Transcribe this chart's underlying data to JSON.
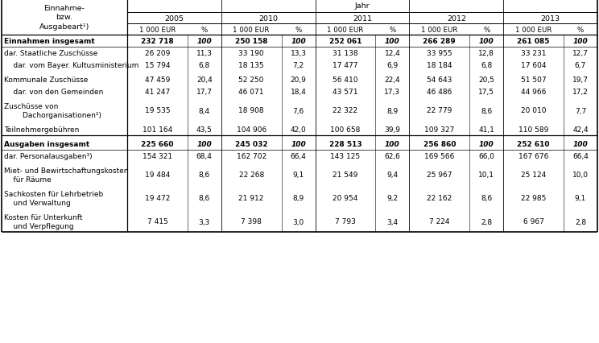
{
  "title": "Jahr",
  "years": [
    "2005",
    "2010",
    "2011",
    "2012",
    "2013"
  ],
  "subheaders": [
    "1 000 EUR",
    "%"
  ],
  "rows": [
    {
      "label": "Einnahmen insgesamt",
      "bold": true,
      "empty_before": false,
      "multiline": false,
      "values": [
        [
          "232 718",
          "100"
        ],
        [
          "250 158",
          "100"
        ],
        [
          "252 061",
          "100"
        ],
        [
          "266 289",
          "100"
        ],
        [
          "261 085",
          "100"
        ]
      ]
    },
    {
      "label": "dar. Staatliche Zuschüsse",
      "bold": false,
      "empty_before": false,
      "multiline": false,
      "values": [
        [
          "26 209",
          "11,3"
        ],
        [
          "33 190",
          "13,3"
        ],
        [
          "31 138",
          "12,4"
        ],
        [
          "33 955",
          "12,8"
        ],
        [
          "33 231",
          "12,7"
        ]
      ]
    },
    {
      "label": "    dar. vom Bayer. Kultusministerium",
      "bold": false,
      "empty_before": false,
      "multiline": false,
      "values": [
        [
          "15 794",
          "6,8"
        ],
        [
          "18 135",
          "7,2"
        ],
        [
          "17 477",
          "6,9"
        ],
        [
          "18 184",
          "6,8"
        ],
        [
          "17 604",
          "6,7"
        ]
      ]
    },
    {
      "label": "Kommunale Zuschüsse",
      "bold": false,
      "empty_before": true,
      "multiline": false,
      "values": [
        [
          "47 459",
          "20,4"
        ],
        [
          "52 250",
          "20,9"
        ],
        [
          "56 410",
          "22,4"
        ],
        [
          "54 643",
          "20,5"
        ],
        [
          "51 507",
          "19,7"
        ]
      ]
    },
    {
      "label": "    dar. von den Gemeinden",
      "bold": false,
      "empty_before": false,
      "multiline": false,
      "values": [
        [
          "41 247",
          "17,7"
        ],
        [
          "46 071",
          "18,4"
        ],
        [
          "43 571",
          "17,3"
        ],
        [
          "46 486",
          "17,5"
        ],
        [
          "44 966",
          "17,2"
        ]
      ]
    },
    {
      "label": "Zuschüsse von\n        Dachorganisationen²)",
      "bold": false,
      "empty_before": true,
      "multiline": true,
      "values": [
        [
          "19 535",
          "8,4"
        ],
        [
          "18 908",
          "7,6"
        ],
        [
          "22 322",
          "8,9"
        ],
        [
          "22 779",
          "8,6"
        ],
        [
          "20 010",
          "7,7"
        ]
      ]
    },
    {
      "label": "Teilnehmergebühren",
      "bold": false,
      "empty_before": true,
      "multiline": false,
      "values": [
        [
          "101 164",
          "43,5"
        ],
        [
          "104 906",
          "42,0"
        ],
        [
          "100 658",
          "39,9"
        ],
        [
          "109 327",
          "41,1"
        ],
        [
          "110 589",
          "42,4"
        ]
      ]
    },
    {
      "label": "Ausgaben insgesamt",
      "bold": true,
      "empty_before": true,
      "multiline": false,
      "values": [
        [
          "225 660",
          "100"
        ],
        [
          "245 032",
          "100"
        ],
        [
          "228 513",
          "100"
        ],
        [
          "256 860",
          "100"
        ],
        [
          "252 610",
          "100"
        ]
      ]
    },
    {
      "label": "dar. Personalausgaben³)",
      "bold": false,
      "empty_before": false,
      "multiline": false,
      "values": [
        [
          "154 321",
          "68,4"
        ],
        [
          "162 702",
          "66,4"
        ],
        [
          "143 125",
          "62,6"
        ],
        [
          "169 566",
          "66,0"
        ],
        [
          "167 676",
          "66,4"
        ]
      ]
    },
    {
      "label": "Miet- und Bewirtschaftungskosten\n    für Räume",
      "bold": false,
      "empty_before": true,
      "multiline": true,
      "values": [
        [
          "19 484",
          "8,6"
        ],
        [
          "22 268",
          "9,1"
        ],
        [
          "21 549",
          "9,4"
        ],
        [
          "25 967",
          "10,1"
        ],
        [
          "25 124",
          "10,0"
        ]
      ]
    },
    {
      "label": "Sachkosten für Lehrbetrieb\n    und Verwaltung",
      "bold": false,
      "empty_before": true,
      "multiline": true,
      "values": [
        [
          "19 472",
          "8,6"
        ],
        [
          "21 912",
          "8,9"
        ],
        [
          "20 954",
          "9,2"
        ],
        [
          "22 162",
          "8,6"
        ],
        [
          "22 985",
          "9,1"
        ]
      ]
    },
    {
      "label": "Kosten für Unterkunft\n    und Verpflegung",
      "bold": false,
      "empty_before": true,
      "multiline": true,
      "values": [
        [
          "7 415",
          "3,3"
        ],
        [
          "7 398",
          "3,0"
        ],
        [
          "7 793",
          "3,4"
        ],
        [
          "7 224",
          "2,8"
        ],
        [
          "6 967",
          "2,8"
        ]
      ]
    }
  ]
}
